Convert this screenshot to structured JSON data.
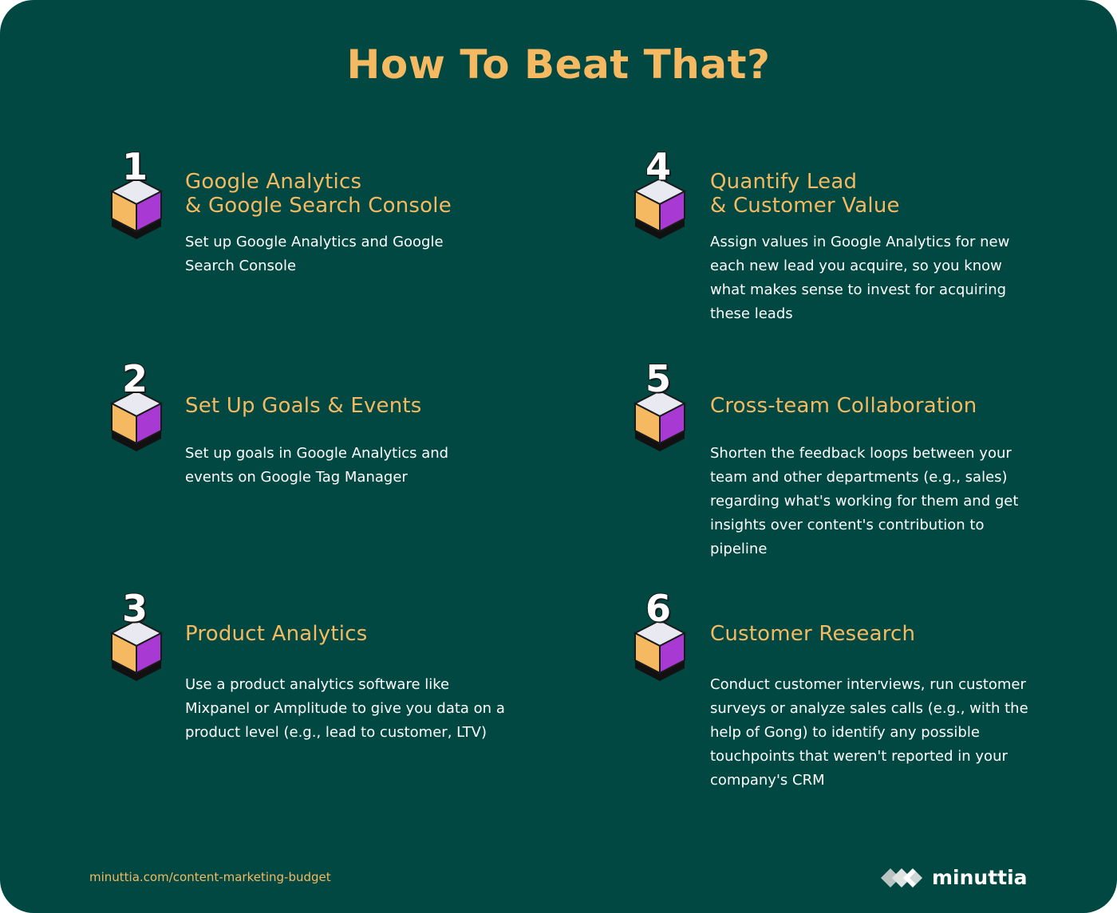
{
  "title": "How To Beat That?",
  "colors": {
    "background": "#014842",
    "accent": "#f4b961",
    "text": "#ffffff",
    "cube_left": "#f4b961",
    "cube_right": "#a83ad3",
    "cube_top": "#e9e9f2"
  },
  "steps": [
    {
      "number": "1",
      "title": "Google Analytics\n& Google Search Console",
      "description": "Set up Google Analytics and Google Search Console"
    },
    {
      "number": "2",
      "title": "Set Up Goals & Events",
      "description": "Set up goals in Google Analytics and events on Google Tag Manager"
    },
    {
      "number": "3",
      "title": "Product Analytics",
      "description": "Use a product analytics software like Mixpanel or Amplitude to give you data on a product level (e.g., lead to customer, LTV)"
    },
    {
      "number": "4",
      "title": "Quantify Lead\n& Customer Value",
      "description": "Assign values in Google Analytics for new each new lead you acquire, so you know what makes sense to invest for acquiring these leads"
    },
    {
      "number": "5",
      "title": "Cross-team Collaboration",
      "description": "Shorten the feedback loops between your team and other departments (e.g., sales) regarding what's working for them and get insights over content's contribution to pipeline"
    },
    {
      "number": "6",
      "title": "Customer Research",
      "description": "Conduct customer interviews, run customer surveys or analyze sales calls (e.g., with the help of Gong) to identify any possible touchpoints that weren't reported in your company's CRM"
    }
  ],
  "footer": {
    "url": "minuttia.com/content-marketing-budget",
    "brand": "minuttia",
    "brand_icon": "minuttia-logo-icon"
  }
}
